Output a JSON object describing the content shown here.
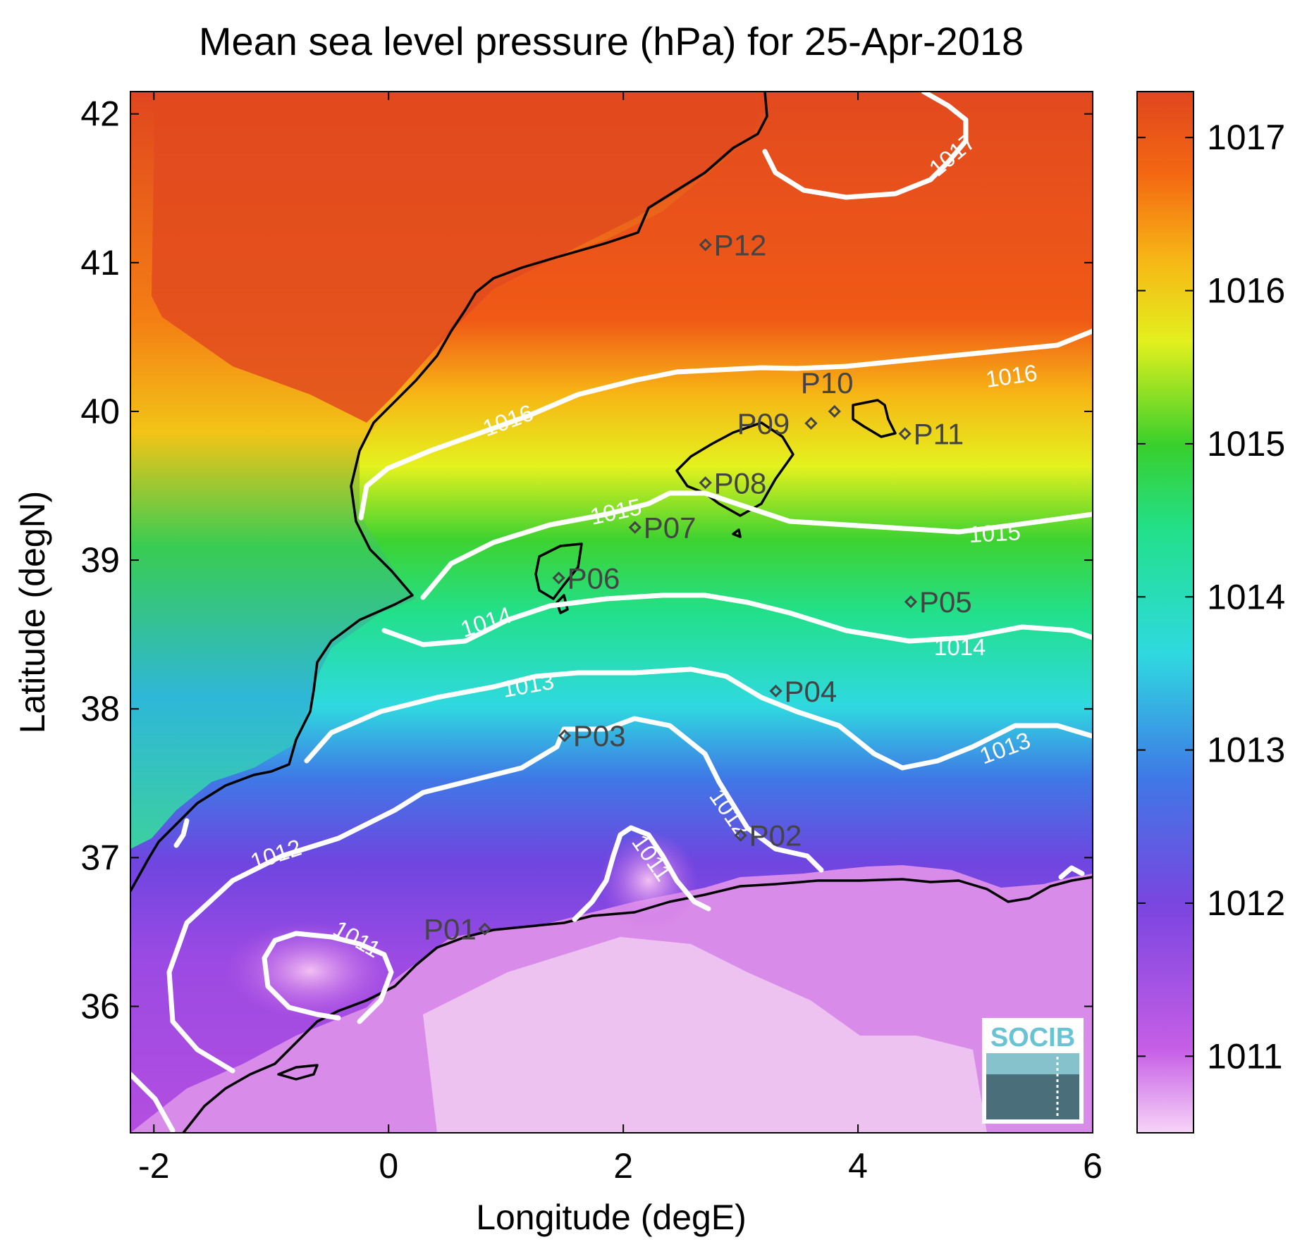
{
  "title": "Mean sea level pressure (hPa) for 25-Apr-2018",
  "axes": {
    "xlabel": "Longitude (degE)",
    "ylabel": "Latitude (degN)",
    "xlim": [
      -2.2,
      6.0
    ],
    "ylim": [
      35.15,
      42.15
    ],
    "xticks": [
      -2,
      0,
      2,
      4,
      6
    ],
    "yticks": [
      36,
      37,
      38,
      39,
      40,
      41,
      42
    ]
  },
  "colorbar": {
    "range": [
      1010.5,
      1017.3
    ],
    "ticks": [
      1011,
      1012,
      1013,
      1014,
      1015,
      1016,
      1017
    ],
    "colors": [
      "#f3c6f3",
      "#b44ee0",
      "#6f45e0",
      "#3a7ce6",
      "#2fd9e0",
      "#22e08a",
      "#38cf2c",
      "#d4f020",
      "#f7b515",
      "#f46812",
      "#e24a1f"
    ]
  },
  "contour_labels": {
    "c1017": "1017",
    "c1016a": "1016",
    "c1016b": "1016",
    "c1015a": "1015",
    "c1015b": "1015",
    "c1014a": "1014",
    "c1014b": "1014",
    "c1013a": "1013",
    "c1013b": "1013",
    "c1012a": "1012",
    "c1012b": "1012",
    "c1011a": "1011",
    "c1011b": "1011"
  },
  "stations": [
    {
      "name": "P01",
      "lon": 0.82,
      "lat": 36.52
    },
    {
      "name": "P02",
      "lon": 3.0,
      "lat": 37.15
    },
    {
      "name": "P03",
      "lon": 1.5,
      "lat": 37.82
    },
    {
      "name": "P04",
      "lon": 3.3,
      "lat": 38.12
    },
    {
      "name": "P05",
      "lon": 4.45,
      "lat": 38.72
    },
    {
      "name": "P06",
      "lon": 1.45,
      "lat": 38.88
    },
    {
      "name": "P07",
      "lon": 2.1,
      "lat": 39.22
    },
    {
      "name": "P08",
      "lon": 2.7,
      "lat": 39.52
    },
    {
      "name": "P09",
      "lon": 3.6,
      "lat": 39.92
    },
    {
      "name": "P10",
      "lon": 3.8,
      "lat": 40.0
    },
    {
      "name": "P11",
      "lon": 4.4,
      "lat": 39.85
    },
    {
      "name": "P12",
      "lon": 2.7,
      "lat": 41.12
    }
  ],
  "logo": {
    "text": "SOCIB"
  }
}
